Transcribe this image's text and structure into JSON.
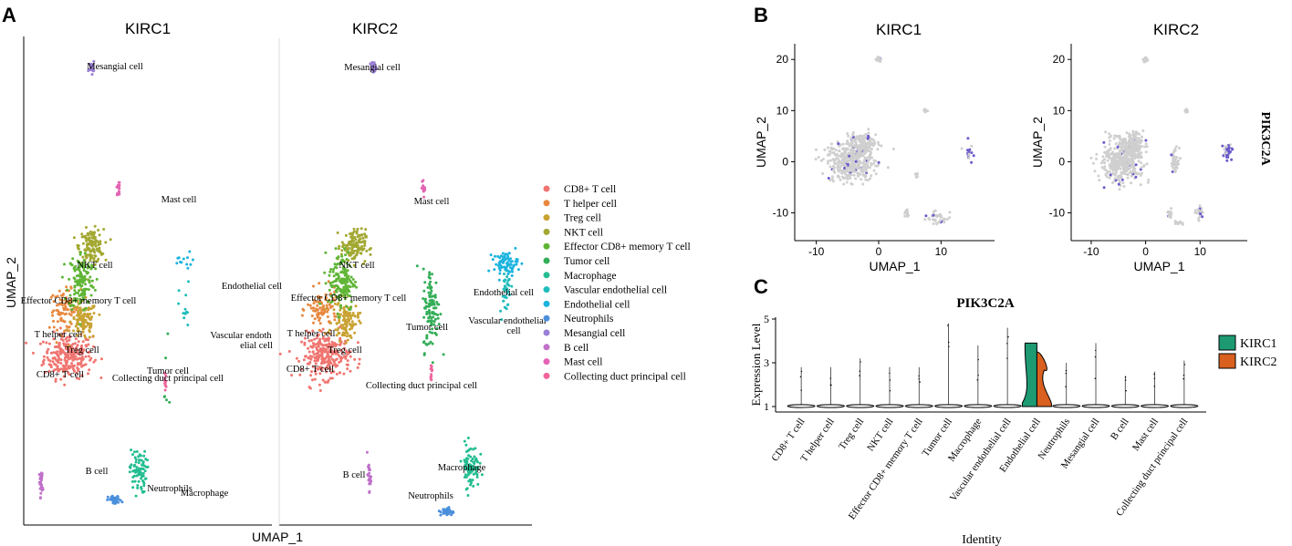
{
  "panel_labels": {
    "a": "A",
    "b": "B",
    "c": "C"
  },
  "colors": {
    "axis": "#000000",
    "grey_cell": "#cfcfcf",
    "expr_cell": "#6a5acd",
    "kirc1": "#1e9a73",
    "kirc2": "#d9601e"
  },
  "chart_data": [
    {
      "id": "umap_clusters",
      "type": "scatter",
      "facets": [
        "KIRC1",
        "KIRC2"
      ],
      "xlabel": "UMAP_1",
      "ylabel": "UMAP_2",
      "legend_position": "right",
      "legend": [
        {
          "name": "CD8+ T cell",
          "color": "#f07570"
        },
        {
          "name": " T helper cell",
          "color": "#e8883f"
        },
        {
          "name": "Treg cell",
          "color": "#c9a232"
        },
        {
          "name": "NKT cell",
          "color": "#a3a832"
        },
        {
          "name": "Effector CD8+ memory T cell",
          "color": "#5fb535"
        },
        {
          "name": "Tumor cell",
          "color": "#33ad57"
        },
        {
          "name": "Macrophage",
          "color": "#23bd91"
        },
        {
          "name": "Vascular endothelial cell",
          "color": "#1fbdbb"
        },
        {
          "name": "Endothelial cell",
          "color": "#1ab3df"
        },
        {
          "name": "Neutrophils",
          "color": "#4a8fdc"
        },
        {
          "name": "Mesangial cell",
          "color": "#9a7fd6"
        },
        {
          "name": "B cell",
          "color": "#c071c9"
        },
        {
          "name": "Mast cell",
          "color": "#e363b4"
        },
        {
          "name": "Collecting duct principal cell",
          "color": "#f0649c"
        }
      ],
      "facet_labels": {
        "KIRC1": [
          "Mesangial cell",
          "Mast cell",
          "NKT cell",
          "Endothelial cell",
          "Effector CD8+ memory T cell",
          "T helper cell",
          "Treg cell",
          "Vascular endoth",
          "elial cell",
          "CD8+ T cell",
          "Tumor cell",
          "Collecting duct principal cell",
          "B cell",
          "Neutrophils",
          "Macrophage"
        ],
        "KIRC2": [
          "Mesangial cell",
          "Mast cell",
          "NKT cell",
          "Endothelial cell",
          "Vascular endothelial",
          "cell",
          "Effector CD8+ memory T cell",
          "T helper cell",
          "Tumor cell",
          "Treg cell",
          "CD8+ T cell",
          "Collecting duct principal cell",
          "Macrophage",
          "B cell",
          "Neutrophils"
        ]
      },
      "clusters": {
        "CD8+ T cell": {
          "KIRC1": [
            -8.5,
            -3.5
          ],
          "KIRC2": [
            -8.0,
            -3.5
          ]
        },
        "T helper cell": {
          "KIRC1": [
            -9.0,
            0.5
          ],
          "KIRC2": [
            -8.5,
            0.5
          ]
        },
        "Treg cell": {
          "KIRC1": [
            -6.5,
            -0.5
          ],
          "KIRC2": [
            -5.5,
            -0.5
          ]
        },
        "NKT cell": {
          "KIRC1": [
            -5.5,
            6.0
          ],
          "KIRC2": [
            -4.5,
            6.0
          ]
        },
        "Effector CD8+ memory T cell": {
          "KIRC1": [
            -6.8,
            3.0
          ],
          "KIRC2": [
            -6.0,
            3.0
          ]
        },
        "Tumor cell": {
          "KIRC1": [
            4.0,
            -5.8
          ],
          "KIRC2": [
            5.5,
            0.5
          ]
        },
        "Macrophage": {
          "KIRC1": [
            0.5,
            -13.5
          ],
          "KIRC2": [
            10.5,
            -13.0
          ]
        },
        "Vascular endothelial cell": {
          "KIRC1": [
            6.5,
            0.5
          ],
          "KIRC2": [
            15.0,
            2.5
          ]
        },
        "Endothelial cell": {
          "KIRC1": [
            6.5,
            4.5
          ],
          "KIRC2": [
            15.0,
            4.5
          ]
        },
        "Neutrophils": {
          "KIRC1": [
            -2.5,
            -16.0
          ],
          "KIRC2": [
            7.5,
            -17.0
          ]
        },
        "Mesangial cell": {
          "KIRC1": [
            -5.5,
            21.5
          ],
          "KIRC2": [
            -2.0,
            21.5
          ]
        },
        "B cell": {
          "KIRC1": [
            -12.0,
            -14.5
          ],
          "KIRC2": [
            -2.5,
            -14.0
          ]
        },
        "Mast cell": {
          "KIRC1": [
            -2.0,
            11.0
          ],
          "KIRC2": [
            4.5,
            11.0
          ]
        },
        "Collecting duct principal cell": {
          "KIRC1": [
            4.0,
            -5.8
          ],
          "KIRC2": [
            5.5,
            -5.0
          ]
        }
      }
    },
    {
      "id": "umap_expression",
      "type": "scatter",
      "facets": [
        "KIRC1",
        "KIRC2"
      ],
      "gene": "PIK3C2A",
      "xlabel": "UMAP_1",
      "ylabel": "UMAP_2",
      "x_ticks": [
        "-10",
        "0",
        "10"
      ],
      "y_ticks": [
        "20",
        "10",
        "0",
        "-10"
      ],
      "xlim": [
        -12,
        18
      ],
      "ylim": [
        -14,
        22
      ]
    },
    {
      "id": "violin",
      "type": "violin",
      "title": "PIK3C2A",
      "xlabel": "Identity",
      "ylabel": "Expression Level",
      "y_ticks": [
        "5",
        "3",
        "1"
      ],
      "ylim": [
        1,
        5
      ],
      "legend": [
        "KIRC1",
        "KIRC2"
      ],
      "categories": [
        "CD8+ T cell",
        "T helper cell",
        "Treg cell",
        "NKT cell",
        "Effector CD8+ memory T cell",
        "Tumor cell",
        "Macrophage",
        "Vascular endothelial cell",
        "Endothelial cell",
        "Neutrophils",
        "Mesangial cell",
        "B cell",
        "Mast cell",
        "Collecting duct principal cell"
      ],
      "max_expression": [
        2.8,
        2.8,
        3.2,
        2.8,
        2.8,
        4.8,
        3.8,
        4.6,
        3.9,
        3.0,
        3.9,
        2.4,
        2.6,
        3.1
      ],
      "highlight_violin": {
        "category": "Endothelial cell",
        "KIRC1_max": 3.9,
        "KIRC2_max": 3.5
      }
    }
  ]
}
